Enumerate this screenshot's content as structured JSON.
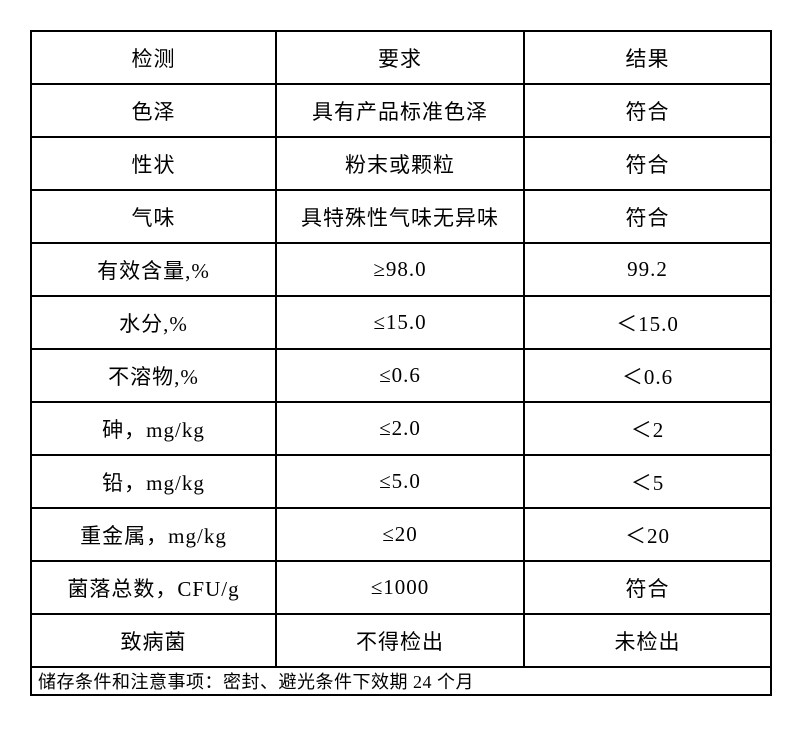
{
  "document": {
    "kind": "inspection-results-table",
    "background_color": "#ffffff",
    "border_color": "#000000",
    "text_color": "#000000"
  },
  "table": {
    "headers": [
      "检测",
      "要求",
      "结果"
    ],
    "rows": [
      [
        "色泽",
        "具有产品标准色泽",
        "符合"
      ],
      [
        "性状",
        "粉末或颗粒",
        "符合"
      ],
      [
        "气味",
        "具特殊性气味无异味",
        "符合"
      ],
      [
        "有效含量,%",
        "≥98.0",
        "99.2"
      ],
      [
        "水分,%",
        "≤15.0",
        "＜15.0"
      ],
      [
        "不溶物,%",
        "≤0.6",
        "＜0.6"
      ],
      [
        "砷，mg/kg",
        "≤2.0",
        "＜2"
      ],
      [
        "铅，mg/kg",
        "≤5.0",
        "＜5"
      ],
      [
        "重金属，mg/kg",
        "≤20",
        "＜20"
      ],
      [
        "菌落总数，CFU/g",
        "≤1000",
        "符合"
      ],
      [
        "致病菌",
        "不得检出",
        "未检出"
      ]
    ],
    "footer_note": "储存条件和注意事项：密封、避光条件下效期 24 个月"
  }
}
